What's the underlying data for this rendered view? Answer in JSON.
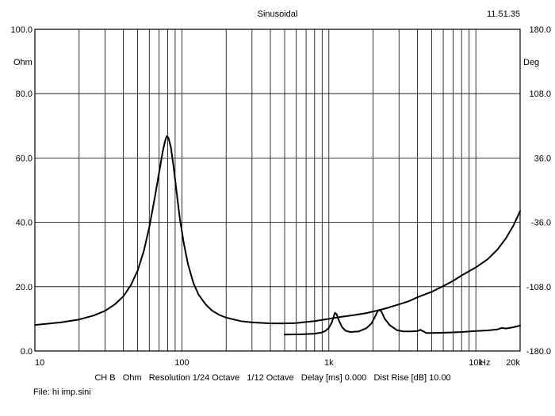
{
  "window": {
    "title": "Sinusoidal",
    "time": "11.51.35",
    "file_label": "File: hi imp.sini"
  },
  "chart_data": {
    "type": "line",
    "xscale": "log",
    "xlim": [
      10,
      20000
    ],
    "ylim": [
      0,
      100
    ],
    "y2lim": [
      -180,
      180
    ],
    "grid": true,
    "ylabel": "Ohm",
    "y2label": "Deg",
    "x_unit_label": "Hz",
    "x_ticks": [
      {
        "value": 10,
        "label": "10"
      },
      {
        "value": 100,
        "label": "100"
      },
      {
        "value": 1000,
        "label": "1k"
      },
      {
        "value": 10000,
        "label": "10k"
      },
      {
        "value": 20000,
        "label": "20k"
      }
    ],
    "y_ticks": [
      {
        "value": 0,
        "label": "0.0"
      },
      {
        "value": 20,
        "label": "20.0"
      },
      {
        "value": 40,
        "label": "40.0"
      },
      {
        "value": 60,
        "label": "60.0"
      },
      {
        "value": 80,
        "label": "80.0"
      },
      {
        "value": 100,
        "label": "100.0"
      }
    ],
    "y2_ticks": [
      {
        "value": -180,
        "label": "-180.0"
      },
      {
        "value": -108,
        "label": "-108.0"
      },
      {
        "value": -36,
        "label": "-36.0"
      },
      {
        "value": 36,
        "label": "36.0"
      },
      {
        "value": 108,
        "label": "108.0"
      },
      {
        "value": 180,
        "label": "180.0"
      }
    ],
    "footer": "CH B   Ohm   Resolution 1/24 Octave   1/12 Octave   Delay [ms] 0.000   Dist Rise [dB] 10.00",
    "series": [
      {
        "values_xy": [
          [
            10,
            8.1
          ],
          [
            15,
            8.9
          ],
          [
            20,
            9.8
          ],
          [
            25,
            11.0
          ],
          [
            30,
            12.5
          ],
          [
            35,
            14.5
          ],
          [
            40,
            17.0
          ],
          [
            45,
            20.5
          ],
          [
            50,
            25.0
          ],
          [
            55,
            31.0
          ],
          [
            60,
            38.5
          ],
          [
            65,
            47.0
          ],
          [
            70,
            55.5
          ],
          [
            74,
            62.0
          ],
          [
            77,
            65.5
          ],
          [
            79,
            66.8
          ],
          [
            81,
            66.3
          ],
          [
            84,
            63.5
          ],
          [
            88,
            57.0
          ],
          [
            92,
            49.5
          ],
          [
            97,
            41.0
          ],
          [
            103,
            33.5
          ],
          [
            110,
            27.0
          ],
          [
            120,
            21.0
          ],
          [
            130,
            17.5
          ],
          [
            145,
            14.5
          ],
          [
            160,
            12.6
          ],
          [
            180,
            11.2
          ],
          [
            200,
            10.4
          ],
          [
            250,
            9.3
          ],
          [
            300,
            8.9
          ],
          [
            400,
            8.6
          ],
          [
            500,
            8.6
          ],
          [
            600,
            8.7
          ],
          [
            800,
            9.3
          ],
          [
            1000,
            10.0
          ],
          [
            1200,
            10.6
          ],
          [
            1500,
            11.2
          ],
          [
            1800,
            11.8
          ],
          [
            2000,
            12.3
          ],
          [
            2200,
            12.7
          ],
          [
            2500,
            13.4
          ],
          [
            3000,
            14.5
          ],
          [
            3500,
            15.5
          ],
          [
            4000,
            16.7
          ],
          [
            5000,
            18.4
          ],
          [
            6000,
            20.2
          ],
          [
            7000,
            21.8
          ],
          [
            8000,
            23.5
          ],
          [
            10000,
            26.0
          ],
          [
            12000,
            28.5
          ],
          [
            14000,
            31.5
          ],
          [
            16000,
            35.0
          ],
          [
            18000,
            39.0
          ],
          [
            20000,
            43.5
          ]
        ]
      },
      {
        "values_xy": [
          [
            500,
            5.1
          ],
          [
            650,
            5.2
          ],
          [
            800,
            5.4
          ],
          [
            900,
            5.8
          ],
          [
            950,
            6.3
          ],
          [
            1000,
            7.2
          ],
          [
            1050,
            9.0
          ],
          [
            1080,
            10.8
          ],
          [
            1100,
            11.9
          ],
          [
            1130,
            11.4
          ],
          [
            1170,
            9.5
          ],
          [
            1230,
            7.4
          ],
          [
            1300,
            6.3
          ],
          [
            1400,
            5.9
          ],
          [
            1600,
            6.1
          ],
          [
            1800,
            7.1
          ],
          [
            1950,
            8.6
          ],
          [
            2050,
            10.5
          ],
          [
            2150,
            12.4
          ],
          [
            2200,
            12.8
          ],
          [
            2280,
            12.2
          ],
          [
            2400,
            10.0
          ],
          [
            2600,
            8.0
          ],
          [
            2900,
            6.5
          ],
          [
            3200,
            6.1
          ],
          [
            3600,
            6.1
          ],
          [
            4000,
            6.2
          ],
          [
            4200,
            6.6
          ],
          [
            4350,
            6.2
          ],
          [
            4600,
            5.6
          ],
          [
            5000,
            5.6
          ],
          [
            6000,
            5.7
          ],
          [
            7000,
            5.8
          ],
          [
            8000,
            5.9
          ],
          [
            10000,
            6.2
          ],
          [
            12000,
            6.4
          ],
          [
            14000,
            6.7
          ],
          [
            15000,
            7.2
          ],
          [
            16000,
            7.0
          ],
          [
            18000,
            7.4
          ],
          [
            20000,
            7.9
          ]
        ]
      }
    ]
  }
}
